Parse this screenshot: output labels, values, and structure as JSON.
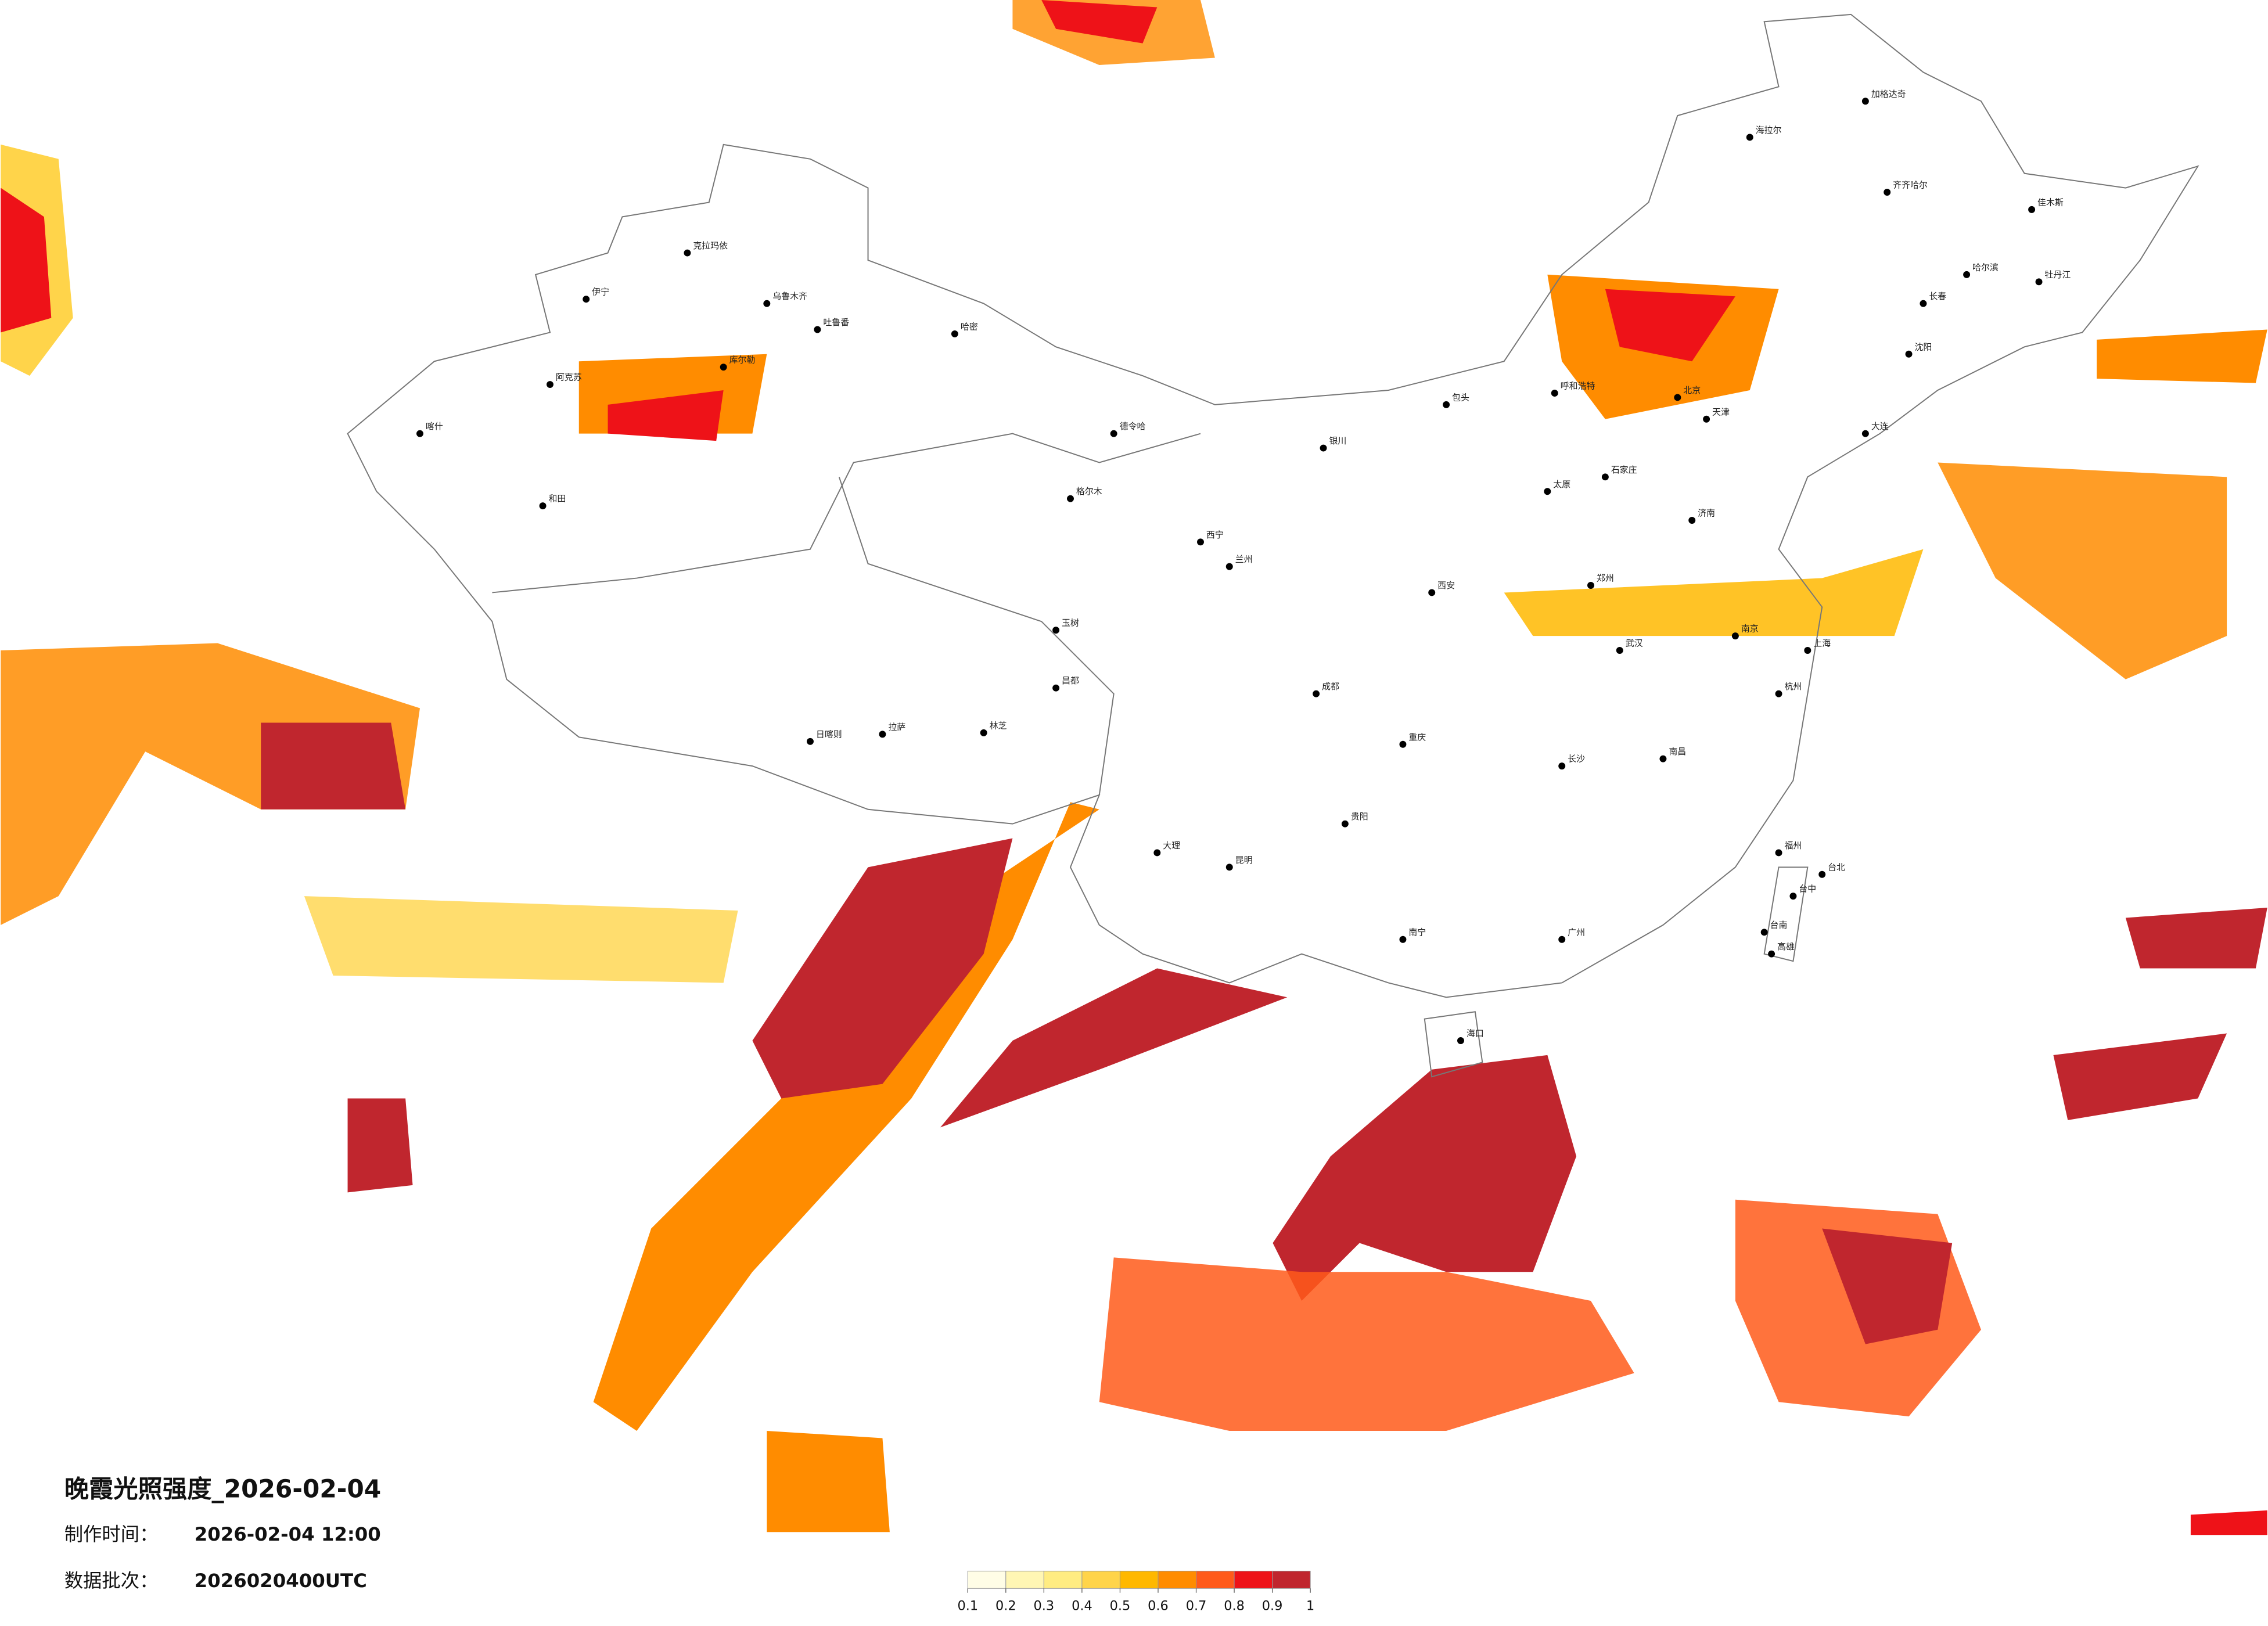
{
  "title": "晚霞光照强度_2026-02-04",
  "make_time_label": "制作时间：",
  "make_time": "2026-02-04 12:00",
  "batch_label": "数据批次：",
  "batch": "2026020400UTC",
  "colorbar": {
    "ticks": [
      0.1,
      0.2,
      0.3,
      0.4,
      0.5,
      0.6,
      0.7,
      0.8,
      0.9,
      1
    ],
    "colors": [
      "#fffde6",
      "#fff6b4",
      "#ffec82",
      "#ffd44a",
      "#ffb800",
      "#ff8c00",
      "#ff5a1a",
      "#ee1218",
      "#c0262e"
    ]
  },
  "cities": [
    "伊宁",
    "克拉玛依",
    "乌鲁木齐",
    "吐鲁番",
    "哈密",
    "库尔勒",
    "阿克苏",
    "喀什",
    "和田",
    "格尔木",
    "德令哈",
    "玉树",
    "昌都",
    "拉萨",
    "日喀则",
    "林芝",
    "西宁",
    "兰州",
    "银川",
    "包头",
    "呼和浩特",
    "北京",
    "天津",
    "石家庄",
    "太原",
    "海拉尔",
    "加格达奇",
    "齐齐哈尔",
    "佳木斯",
    "牡丹江",
    "哈尔滨",
    "长春",
    "沈阳",
    "大连",
    "济南",
    "郑州",
    "西安",
    "成都",
    "重庆",
    "武汉",
    "长沙",
    "南昌",
    "南京",
    "上海",
    "杭州",
    "福州",
    "台北",
    "台中",
    "台南",
    "高雄",
    "广州",
    "南宁",
    "海口",
    "昆明",
    "贵阳",
    "大理"
  ]
}
